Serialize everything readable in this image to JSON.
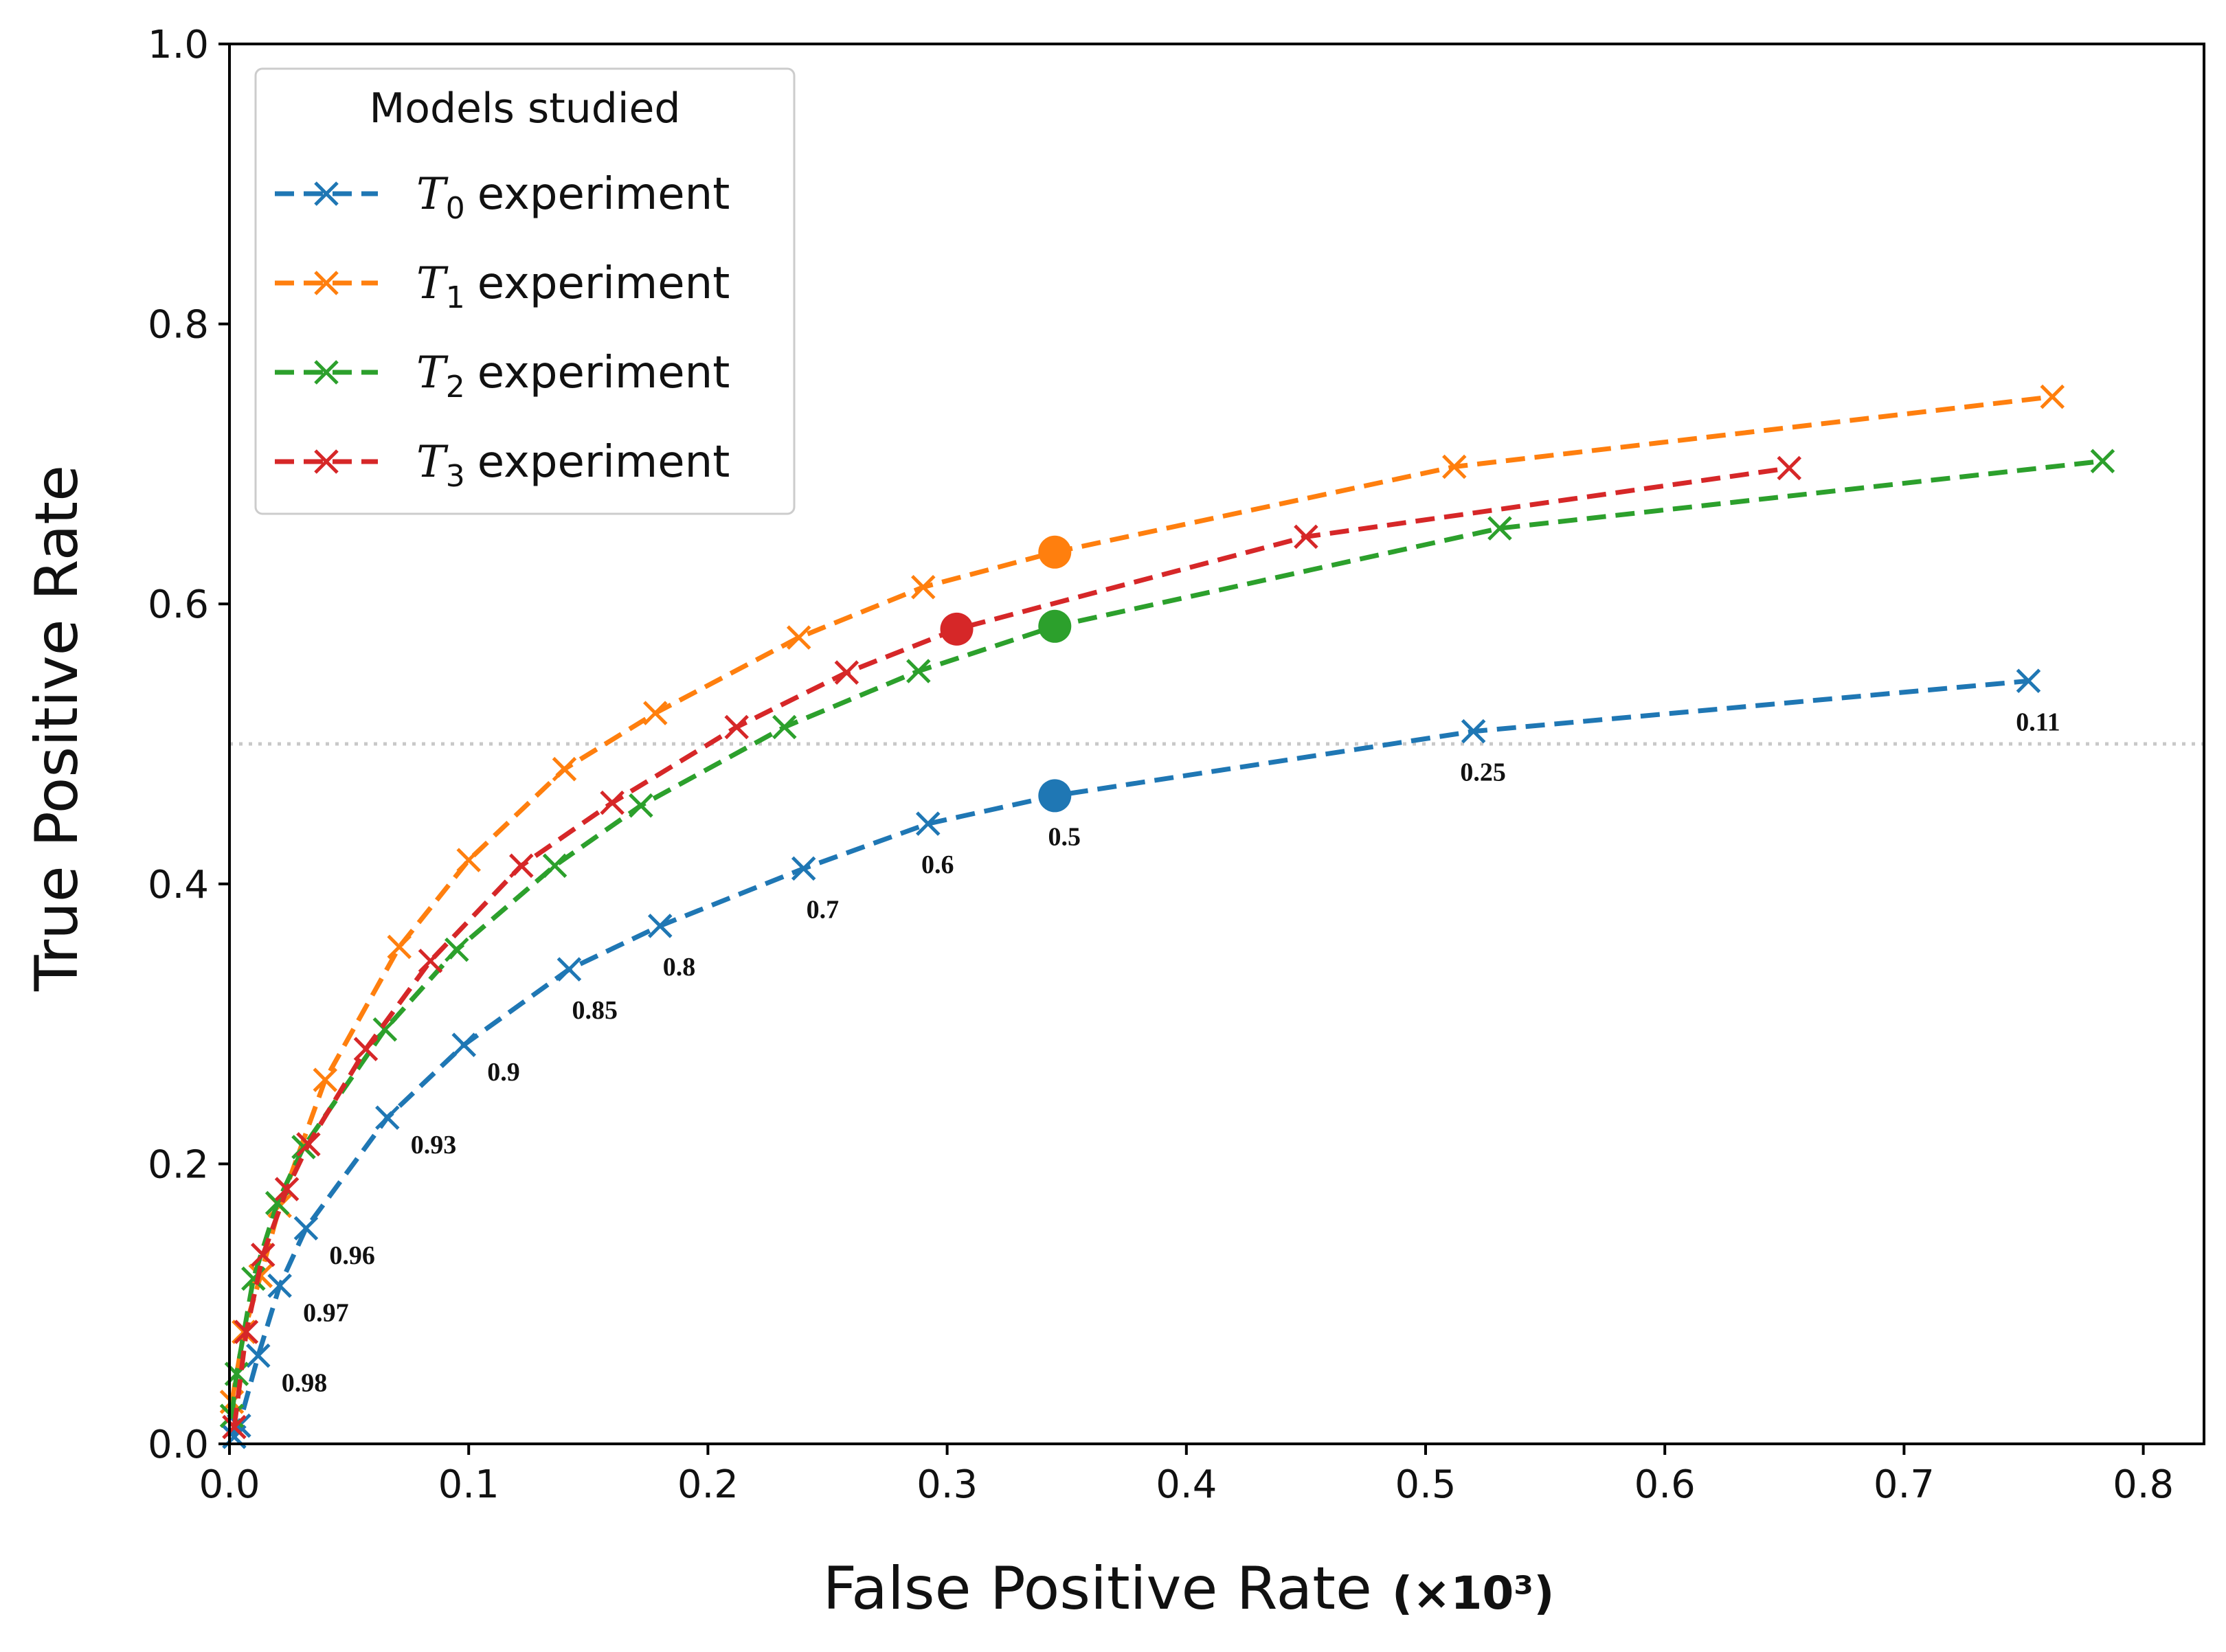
{
  "chart_data": {
    "type": "line",
    "title": "",
    "xlabel": "False Positive Rate",
    "xlabel_unit": "(×10³)",
    "ylabel": "True Positive Rate",
    "xlim": [
      0.0,
      0.82
    ],
    "ylim": [
      0.0,
      1.0
    ],
    "xticks": [
      "0.0",
      "0.1",
      "0.2",
      "0.3",
      "0.4",
      "0.5",
      "0.6",
      "0.7",
      "0.8"
    ],
    "yticks": [
      "0.0",
      "0.2",
      "0.4",
      "0.6",
      "0.8",
      "1.0"
    ],
    "reference_line": {
      "y": 0.5,
      "style": "dotted",
      "color": "#c8c8c8"
    },
    "legend": {
      "title": "Models studied",
      "placement": "top-left",
      "entries": [
        {
          "symbol": "T",
          "subscript": "0",
          "text": "experiment"
        },
        {
          "symbol": "T",
          "subscript": "1",
          "text": "experiment"
        },
        {
          "symbol": "T",
          "subscript": "2",
          "text": "experiment"
        },
        {
          "symbol": "T",
          "subscript": "3",
          "text": "experiment"
        }
      ]
    },
    "series": [
      {
        "name": "T0 experiment",
        "color": "#1f77b4",
        "x": [
          0.002,
          0.004,
          0.012,
          0.021,
          0.032,
          0.066,
          0.098,
          0.142,
          0.18,
          0.24,
          0.292,
          0.345,
          0.52,
          0.752
        ],
        "y": [
          0.005,
          0.013,
          0.063,
          0.113,
          0.154,
          0.233,
          0.285,
          0.339,
          0.37,
          0.411,
          0.443,
          0.463,
          0.509,
          0.545
        ],
        "highlight_index": 11,
        "point_labels": [
          "",
          "",
          "0.98",
          "0.97",
          "0.96",
          "0.93",
          "0.9",
          "0.85",
          "0.8",
          "0.7",
          "0.6",
          "0.5",
          "0.25",
          "0.11"
        ]
      },
      {
        "name": "T1 experiment",
        "color": "#ff7f0e",
        "x": [
          0.001,
          0.006,
          0.013,
          0.021,
          0.04,
          0.071,
          0.1,
          0.14,
          0.178,
          0.238,
          0.29,
          0.345,
          0.512,
          0.762
        ],
        "y": [
          0.03,
          0.08,
          0.12,
          0.17,
          0.26,
          0.355,
          0.417,
          0.482,
          0.522,
          0.576,
          0.612,
          0.637,
          0.698,
          0.748
        ],
        "highlight_index": 11
      },
      {
        "name": "T2 experiment",
        "color": "#2ca02c",
        "x": [
          0.001,
          0.003,
          0.01,
          0.02,
          0.031,
          0.065,
          0.095,
          0.136,
          0.172,
          0.232,
          0.288,
          0.345,
          0.531,
          0.783
        ],
        "y": [
          0.02,
          0.05,
          0.118,
          0.172,
          0.212,
          0.296,
          0.353,
          0.413,
          0.456,
          0.512,
          0.552,
          0.584,
          0.654,
          0.702
        ],
        "highlight_index": 11
      },
      {
        "name": "T3 experiment",
        "color": "#d62728",
        "x": [
          0.002,
          0.007,
          0.014,
          0.024,
          0.033,
          0.057,
          0.084,
          0.122,
          0.16,
          0.212,
          0.258,
          0.304,
          0.45,
          0.652
        ],
        "y": [
          0.012,
          0.08,
          0.135,
          0.182,
          0.214,
          0.282,
          0.345,
          0.413,
          0.458,
          0.512,
          0.551,
          0.582,
          0.648,
          0.697
        ],
        "highlight_index": 11
      }
    ]
  }
}
